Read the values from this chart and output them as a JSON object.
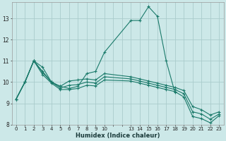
{
  "xlabel": "Humidex (Indice chaleur)",
  "bg_color": "#cce8e8",
  "grid_color": "#aacccc",
  "line_color": "#1a7a6a",
  "xlim": [
    -0.5,
    23.5
  ],
  "ylim": [
    8.0,
    13.75
  ],
  "xtick_positions": [
    0,
    1,
    2,
    3,
    4,
    5,
    6,
    7,
    8,
    9,
    10,
    11,
    12,
    13,
    14,
    15,
    16,
    17,
    18,
    19,
    20,
    21,
    22,
    23
  ],
  "xtick_labels": [
    "0",
    "1",
    "2",
    "3",
    "4",
    "5",
    "6",
    "7",
    "8",
    "9",
    "10",
    "",
    "",
    "13",
    "14",
    "15",
    "16",
    "17",
    "18",
    "19",
    "20",
    "21",
    "22",
    "23"
  ],
  "yticks": [
    8,
    9,
    10,
    11,
    12,
    13
  ],
  "lines": [
    {
      "x": [
        0,
        1,
        2,
        3,
        4,
        5,
        6,
        7,
        8,
        9,
        10,
        13,
        14,
        15,
        16,
        17,
        18
      ],
      "y": [
        9.2,
        10.0,
        11.0,
        10.7,
        10.0,
        9.8,
        9.7,
        9.8,
        10.4,
        10.5,
        11.4,
        12.9,
        12.9,
        13.55,
        13.1,
        11.0,
        9.5
      ]
    },
    {
      "x": [
        0,
        1,
        2,
        3,
        4,
        5,
        6,
        7,
        8,
        9,
        10,
        13,
        14,
        15,
        16,
        17,
        18,
        19,
        20,
        21,
        22,
        23
      ],
      "y": [
        9.2,
        10.0,
        11.0,
        10.5,
        10.0,
        9.8,
        10.05,
        10.1,
        10.15,
        10.1,
        10.4,
        10.25,
        10.15,
        10.05,
        9.95,
        9.85,
        9.75,
        9.6,
        8.85,
        8.7,
        8.45,
        8.6
      ]
    },
    {
      "x": [
        0,
        1,
        2,
        3,
        4,
        5,
        6,
        7,
        8,
        9,
        10,
        13,
        14,
        15,
        16,
        17,
        18,
        19,
        20,
        21,
        22,
        23
      ],
      "y": [
        9.2,
        10.0,
        11.0,
        10.45,
        10.0,
        9.72,
        9.85,
        9.88,
        10.0,
        9.95,
        10.25,
        10.15,
        10.05,
        9.95,
        9.85,
        9.75,
        9.65,
        9.45,
        8.6,
        8.5,
        8.25,
        8.5
      ]
    },
    {
      "x": [
        0,
        1,
        2,
        3,
        4,
        5,
        6,
        7,
        8,
        9,
        10,
        13,
        14,
        15,
        16,
        17,
        18,
        19,
        20,
        21,
        22,
        23
      ],
      "y": [
        9.2,
        10.0,
        11.0,
        10.35,
        9.95,
        9.65,
        9.65,
        9.7,
        9.85,
        9.82,
        10.1,
        10.05,
        9.95,
        9.85,
        9.75,
        9.65,
        9.55,
        9.3,
        8.38,
        8.28,
        8.08,
        8.42
      ]
    }
  ]
}
